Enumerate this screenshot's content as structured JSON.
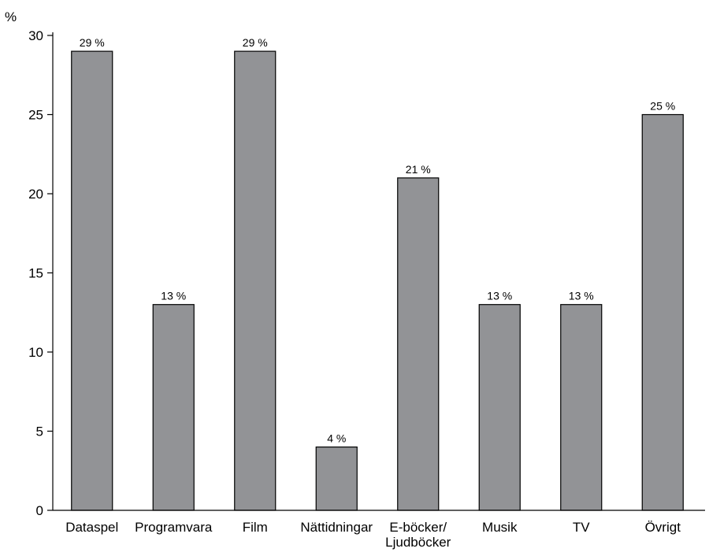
{
  "chart_data": {
    "type": "bar",
    "y_unit_label": "%",
    "categories": [
      [
        "Dataspel"
      ],
      [
        "Programvara"
      ],
      [
        "Film"
      ],
      [
        "Nättidningar"
      ],
      [
        "E-böcker/",
        "Ljudböcker"
      ],
      [
        "Musik"
      ],
      [
        "TV"
      ],
      [
        "Övrigt"
      ]
    ],
    "values": [
      29,
      13,
      29,
      4,
      21,
      13,
      13,
      25
    ],
    "value_labels": [
      "29 %",
      "13 %",
      "29 %",
      "4 %",
      "21 %",
      "13 %",
      "13 %",
      "25 %"
    ],
    "ylim": [
      0,
      30
    ],
    "yticks": [
      0,
      5,
      10,
      15,
      20,
      25,
      30
    ],
    "ytick_labels": [
      "0",
      "5",
      "10",
      "15",
      "20",
      "25",
      "30"
    ],
    "bar_color": "#929396",
    "grid": false,
    "legend": "none"
  }
}
